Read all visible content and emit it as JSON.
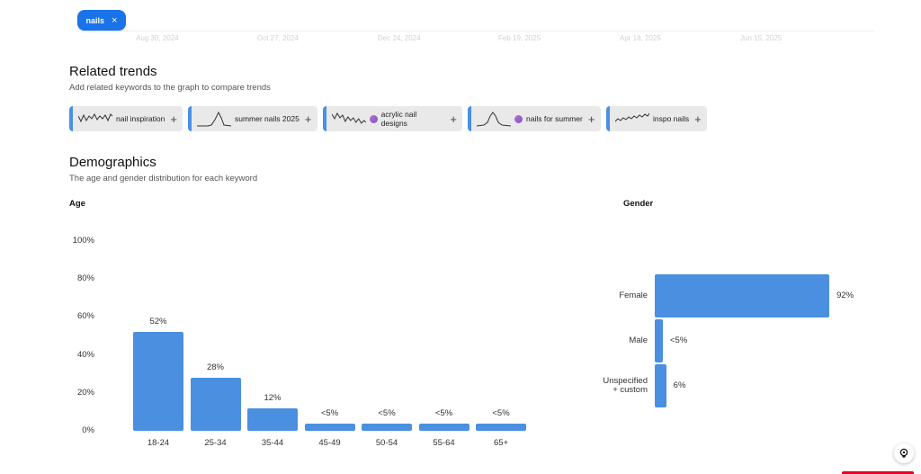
{
  "keyword_chip": {
    "label": "nails",
    "close": "×"
  },
  "date_axis": [
    "Aug 30, 2024",
    "Oct 27, 2024",
    "Dec 24, 2024",
    "Feb 19, 2025",
    "Apr 18, 2025",
    "Jun 15, 2025"
  ],
  "related": {
    "title": "Related trends",
    "subtitle": "Add related keywords to the graph to compare trends",
    "items": [
      {
        "label": "nail inspiration",
        "icon": "sparkline-icon",
        "has_avatar": false
      },
      {
        "label": "summer nails 2025",
        "icon": "sparkline-icon",
        "has_avatar": false
      },
      {
        "label": "acrylic nail designs",
        "icon": "sparkline-icon",
        "has_avatar": true
      },
      {
        "label": "nails for summer",
        "icon": "sparkline-icon",
        "has_avatar": true
      },
      {
        "label": "inspo nails",
        "icon": "sparkline-icon",
        "has_avatar": false
      }
    ],
    "add_symbol": "+"
  },
  "demographics": {
    "title": "Demographics",
    "subtitle": "The age and gender distribution for each keyword",
    "age_title": "Age",
    "gender_title": "Gender"
  },
  "chart_data": [
    {
      "type": "bar",
      "title": "Age",
      "categories": [
        "18-24",
        "25-34",
        "35-44",
        "45-49",
        "50-54",
        "55-64",
        "65+"
      ],
      "values": [
        52,
        28,
        12,
        4,
        4,
        4,
        4
      ],
      "value_labels": [
        "52%",
        "28%",
        "12%",
        "<5%",
        "<5%",
        "<5%",
        "<5%"
      ],
      "yticks": [
        "0%",
        "20%",
        "40%",
        "60%",
        "80%",
        "100%"
      ],
      "ylim": [
        0,
        100
      ],
      "color": "#4a8fe0"
    },
    {
      "type": "bar",
      "orientation": "horizontal",
      "title": "Gender",
      "categories": [
        "Female",
        "Male",
        "Unspecified + custom"
      ],
      "values": [
        92,
        4,
        6
      ],
      "value_labels": [
        "92%",
        "<5%",
        "6%"
      ],
      "xlim": [
        0,
        100
      ],
      "color": "#4a8fe0"
    }
  ]
}
